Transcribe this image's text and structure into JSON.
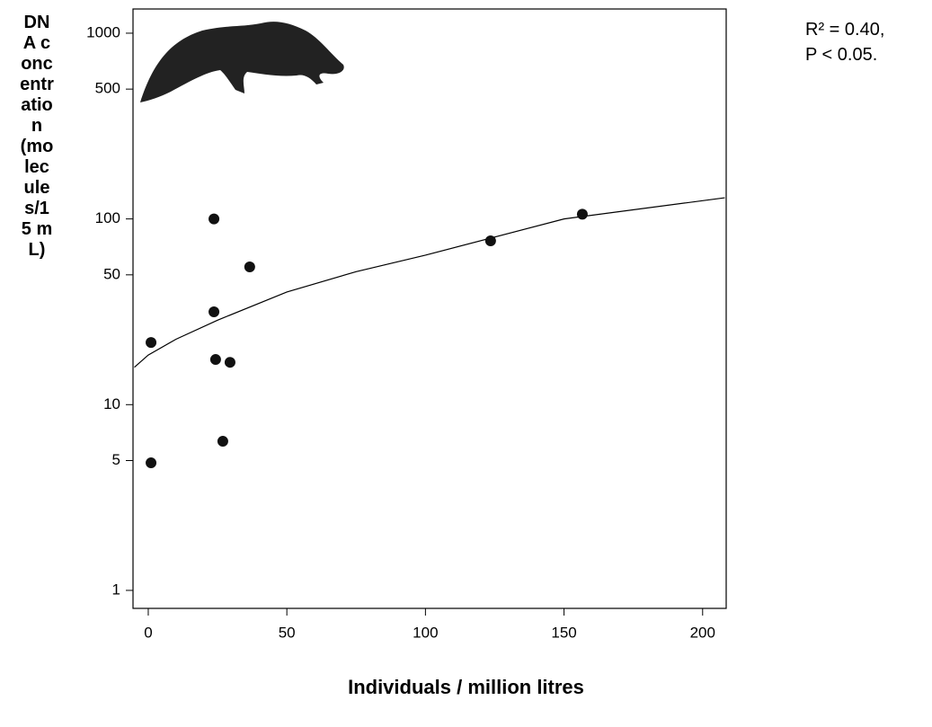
{
  "chart_data": {
    "type": "scatter",
    "y_label": "DNA concentration (molecules/15 mL)",
    "x_label": "Individuals / million litres",
    "annotations": [
      "R² = 0.40,",
      "P < 0.05."
    ],
    "x": [
      1,
      1,
      23.7,
      23.7,
      36.6,
      24.3,
      29.5,
      26.9,
      123.5,
      156.6
    ],
    "values": [
      21.6,
      4.86,
      100,
      31.6,
      55.2,
      17.5,
      16.9,
      6.35,
      76.2,
      106
    ],
    "color": "#111111",
    "curve": {
      "x": [
        -5,
        0,
        10,
        25,
        50,
        75,
        100,
        150,
        208
      ],
      "y": [
        15.9,
        18.5,
        22.5,
        28.5,
        40.4,
        52,
        63.8,
        100,
        130
      ]
    },
    "xlim": [
      -5.5,
      208.5
    ],
    "xticks": [
      0,
      50,
      100,
      150,
      200
    ],
    "ylim": [
      0.8,
      1350
    ],
    "yticks": [
      1,
      5,
      10,
      50,
      100,
      500,
      1000
    ],
    "log_y": true
  }
}
